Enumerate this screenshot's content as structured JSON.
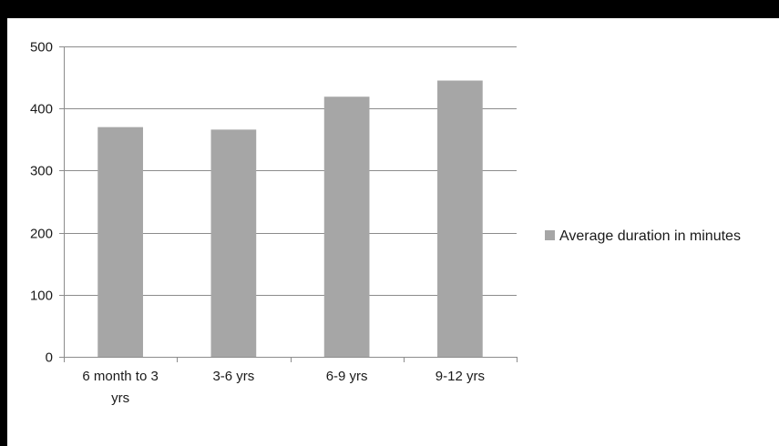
{
  "colors": {
    "bar": "#a6a6a6",
    "grid": "#8c8c8c",
    "axis": "#8c8c8c",
    "frame": "#000000"
  },
  "chart_data": {
    "type": "bar",
    "categories": [
      "6 month to 3 yrs",
      "3-6 yrs",
      "6-9 yrs",
      "9-12 yrs"
    ],
    "category_label_lines": [
      [
        "6 month to 3",
        "yrs"
      ],
      [
        "3-6 yrs"
      ],
      [
        "6-9 yrs"
      ],
      [
        "9-12 yrs"
      ]
    ],
    "series": [
      {
        "name": "Average duration in minutes",
        "values": [
          370,
          366,
          419,
          445
        ]
      }
    ],
    "ylim": [
      0,
      500
    ],
    "yticks": [
      0,
      100,
      200,
      300,
      400,
      500
    ],
    "grid": true,
    "legend": "right",
    "title": "",
    "xlabel": "",
    "ylabel": ""
  }
}
